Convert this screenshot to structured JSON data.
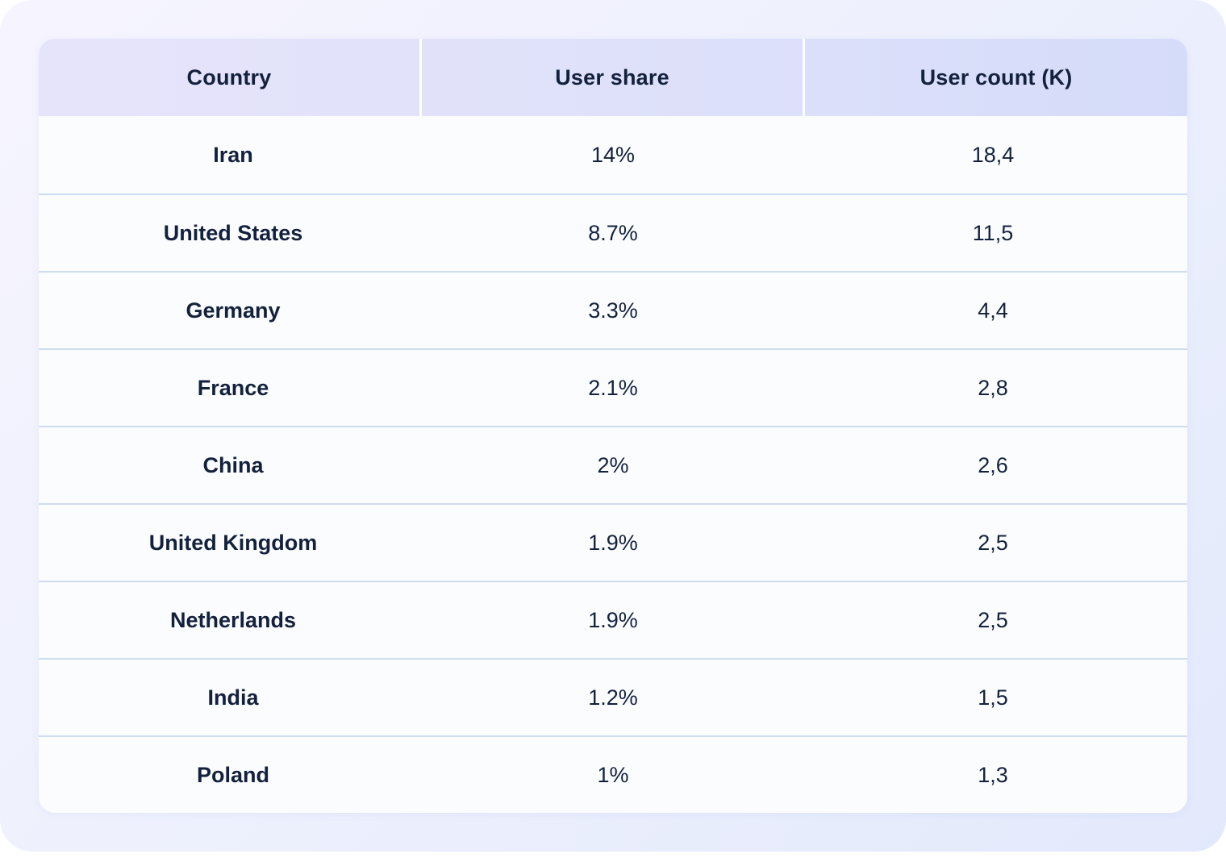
{
  "chart_data": {
    "type": "table",
    "columns": [
      "Country",
      "User share",
      "User count (K)"
    ],
    "rows": [
      {
        "country": "Iran",
        "share": "14%",
        "count": "18,4"
      },
      {
        "country": "United States",
        "share": "8.7%",
        "count": "11,5"
      },
      {
        "country": "Germany",
        "share": "3.3%",
        "count": "4,4"
      },
      {
        "country": "France",
        "share": "2.1%",
        "count": "2,8"
      },
      {
        "country": "China",
        "share": "2%",
        "count": "2,6"
      },
      {
        "country": "United Kingdom",
        "share": "1.9%",
        "count": "2,5"
      },
      {
        "country": "Netherlands",
        "share": "1.9%",
        "count": "2,5"
      },
      {
        "country": "India",
        "share": "1.2%",
        "count": "1,5"
      },
      {
        "country": "Poland",
        "share": "1%",
        "count": "1,3"
      }
    ]
  }
}
